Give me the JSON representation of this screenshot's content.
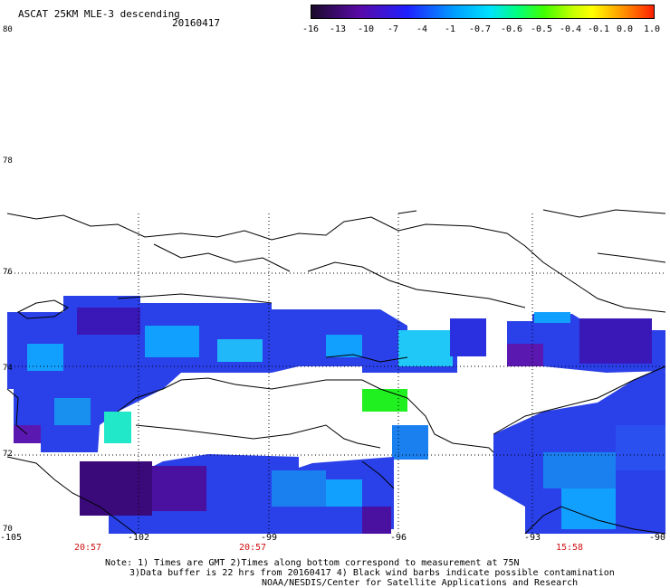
{
  "header": {
    "title": "ASCAT 25KM MLE-3 descending",
    "date": "20160417"
  },
  "colorbar": {
    "labels": [
      "-16",
      "-13",
      "-10",
      "-7",
      "-4",
      "-1",
      "-0.7",
      "-0.6",
      "-0.5",
      "-0.4",
      "-0.1",
      "0.0",
      "1.0"
    ]
  },
  "map": {
    "lat_labels": [
      "80",
      "78",
      "76",
      "74",
      "72",
      "70"
    ],
    "lon_labels": [
      "-105",
      "-102",
      "-99",
      "-96",
      "-93",
      "-90"
    ],
    "time_labels": [
      "20:57",
      "20:57",
      "15:58"
    ],
    "colors": {
      "deep": "#3a0a7a",
      "blue": "#2a40e8",
      "lightblue": "#12a0ff",
      "cyan": "#20d8f0",
      "green": "#20f020",
      "coast": "#000000"
    }
  },
  "notes": {
    "line1": "Note: 1) Times are GMT 2)Times along bottom correspond to measurement at 75N",
    "line2": "3)Data buffer is 22 hrs from 20160417 4) Black wind barbs indicate possible contamination",
    "line3": "NOAA/NESDIS/Center for Satellite Applications and Research"
  }
}
